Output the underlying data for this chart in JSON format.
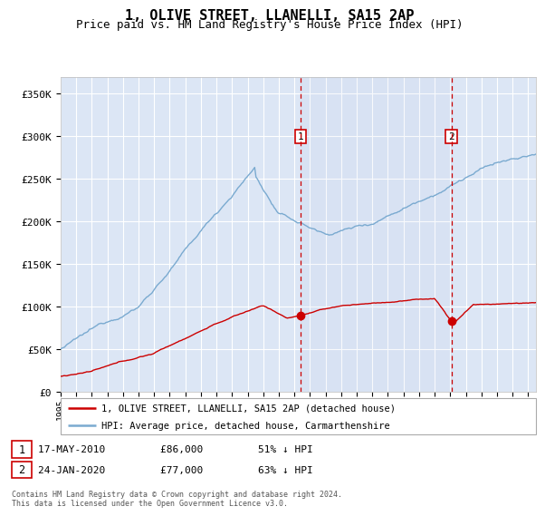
{
  "title": "1, OLIVE STREET, LLANELLI, SA15 2AP",
  "subtitle": "Price paid vs. HM Land Registry's House Price Index (HPI)",
  "title_fontsize": 11,
  "subtitle_fontsize": 9,
  "ylabel_ticks": [
    "£0",
    "£50K",
    "£100K",
    "£150K",
    "£200K",
    "£250K",
    "£300K",
    "£350K"
  ],
  "ytick_values": [
    0,
    50000,
    100000,
    150000,
    200000,
    250000,
    300000,
    350000
  ],
  "ylim": [
    0,
    370000
  ],
  "background_color": "#ffffff",
  "plot_bg_color": "#dce6f5",
  "grid_color": "#ffffff",
  "red_line_color": "#cc0000",
  "blue_line_color": "#7aaad0",
  "sale1_date_num": 2010.38,
  "sale2_date_num": 2020.07,
  "sale1_price": 86000,
  "sale2_price": 77000,
  "legend_label_red": "1, OLIVE STREET, LLANELLI, SA15 2AP (detached house)",
  "legend_label_blue": "HPI: Average price, detached house, Carmarthenshire",
  "copyright": "Contains HM Land Registry data © Crown copyright and database right 2024.\nThis data is licensed under the Open Government Licence v3.0.",
  "xstart": 1995.0,
  "xend": 2025.5,
  "xtick_years": [
    1995,
    1996,
    1997,
    1998,
    1999,
    2000,
    2001,
    2002,
    2003,
    2004,
    2005,
    2006,
    2007,
    2008,
    2009,
    2010,
    2011,
    2012,
    2013,
    2014,
    2015,
    2016,
    2017,
    2018,
    2019,
    2020,
    2021,
    2022,
    2023,
    2024,
    2025
  ]
}
